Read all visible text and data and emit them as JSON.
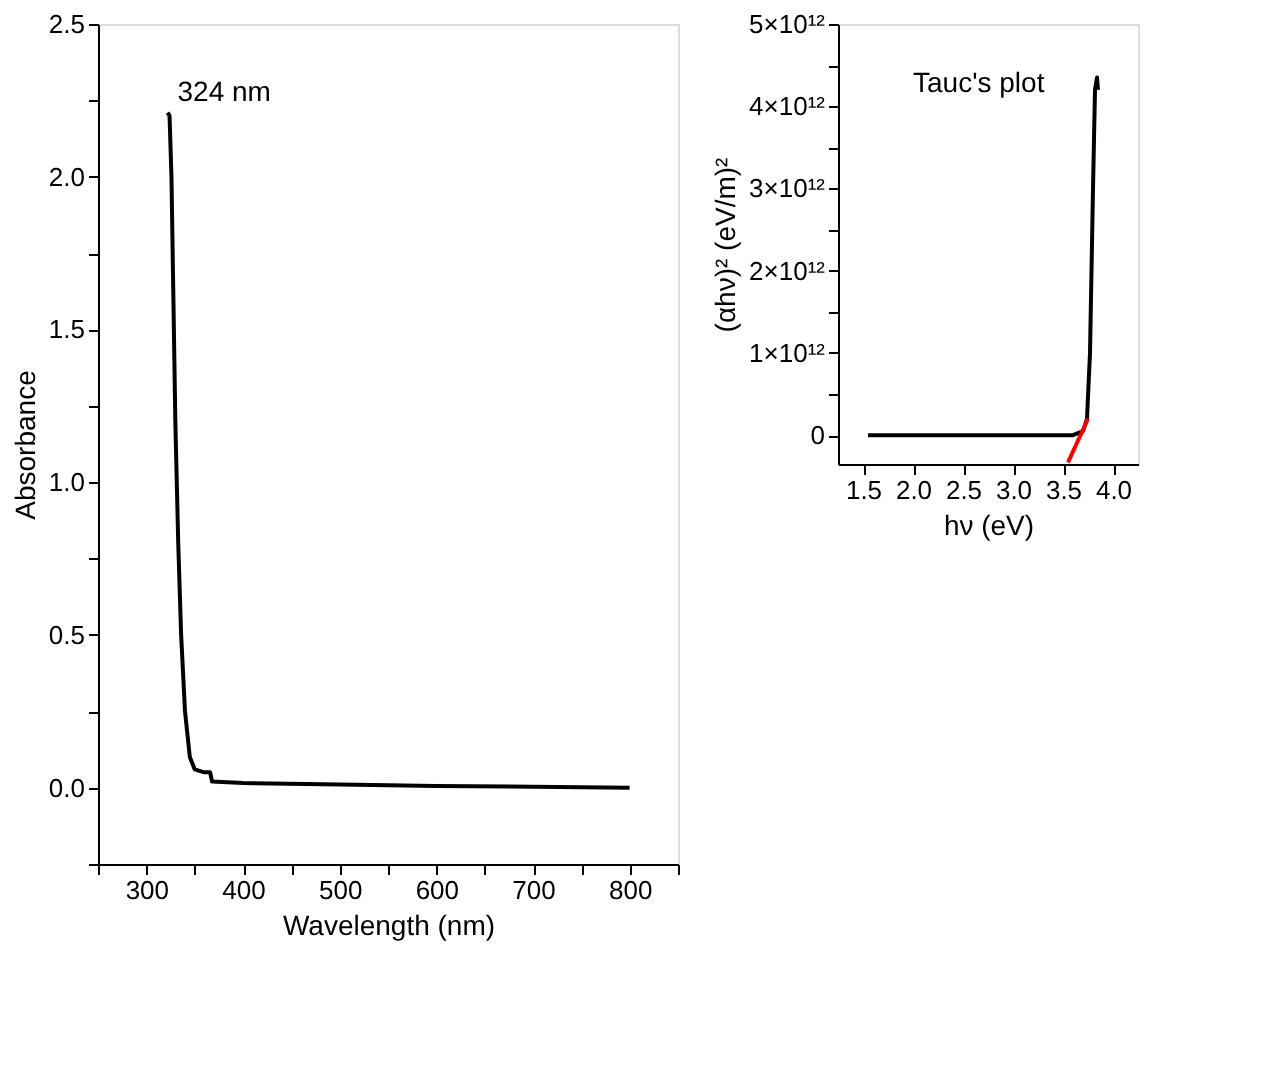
{
  "chart_data": [
    {
      "type": "line",
      "xlabel": "Wavelength (nm)",
      "ylabel": "Absorbance",
      "legend": false,
      "grid": false,
      "x": [
        322,
        324,
        326,
        328,
        330,
        333,
        336,
        340,
        345,
        350,
        360,
        366,
        368,
        400,
        500,
        600,
        700,
        800
      ],
      "series": [
        {
          "color": "#000000",
          "values": [
            2.21,
            2.2,
            2.0,
            1.6,
            1.2,
            0.8,
            0.5,
            0.25,
            0.1,
            0.06,
            0.05,
            0.05,
            0.02,
            0.015,
            0.01,
            0.005,
            0.003,
            0.0
          ]
        }
      ],
      "xlim": [
        250,
        850
      ],
      "xticks": [
        {
          "value": 250,
          "label": null
        },
        300,
        {
          "value": 350,
          "label": null
        },
        400,
        {
          "value": 450,
          "label": null
        },
        500,
        {
          "value": 550,
          "label": null
        },
        600,
        {
          "value": 650,
          "label": null
        },
        700,
        {
          "value": 750,
          "label": null
        },
        800,
        {
          "value": 850,
          "label": null
        }
      ],
      "ylim": [
        -0.25,
        2.5
      ],
      "yticks": [
        {
          "value": -0.25,
          "label": null
        },
        {
          "value": 0,
          "label": "0.0"
        },
        {
          "value": 0.25,
          "label": null
        },
        0.5,
        {
          "value": 0.75,
          "label": null
        },
        {
          "value": 1,
          "label": "1.0"
        },
        {
          "value": 1.25,
          "label": null
        },
        1.5,
        {
          "value": 1.75,
          "label": null
        },
        {
          "value": 2,
          "label": "2.0"
        },
        {
          "value": 2.25,
          "label": null
        },
        2.5
      ],
      "annotations": [
        {
          "text": "324 nm",
          "x": 324,
          "y": 2.21
        }
      ]
    },
    {
      "type": "line",
      "xlabel": "hν (eV)",
      "ylabel": "(αhν)² (eV/m)²",
      "legend": false,
      "grid": false,
      "series": [
        {
          "color": "#000000",
          "x": [
            1.55,
            3.6,
            3.7,
            3.74,
            3.77,
            3.8,
            3.82,
            3.84,
            3.85
          ],
          "values": [
            0,
            0,
            50000000000.0,
            200000000000.0,
            1000000000000.0,
            3000000000000.0,
            4200000000000.0,
            4350000000000.0,
            4200000000000.0
          ]
        },
        {
          "color": "#ff0000",
          "x": [
            3.55,
            3.75
          ],
          "values": [
            -330000000000.0,
            200000000000.0
          ]
        }
      ],
      "xlim": [
        1.25,
        4.25
      ],
      "xticks": [
        1.5,
        {
          "value": 2,
          "label": "2.0"
        },
        2.5,
        {
          "value": 3,
          "label": "3.0"
        },
        3.5,
        {
          "value": 4,
          "label": "4.0"
        }
      ],
      "ylim": [
        -350000000000.0,
        5000000000000.0
      ],
      "yticks": [
        0,
        {
          "value": 500000000000.0,
          "label": null
        },
        {
          "value": 1000000000000.0,
          "label": "1×10¹²"
        },
        {
          "value": 1500000000000.0,
          "label": null
        },
        {
          "value": 2000000000000.0,
          "label": "2×10¹²"
        },
        {
          "value": 2500000000000.0,
          "label": null
        },
        {
          "value": 3000000000000.0,
          "label": "3×10¹²"
        },
        {
          "value": 3500000000000.0,
          "label": null
        },
        {
          "value": 4000000000000.0,
          "label": "4×10¹²"
        },
        {
          "value": 4500000000000.0,
          "label": null
        },
        {
          "value": 5000000000000.0,
          "label": "5×10¹²"
        }
      ],
      "annotations": [
        "Tauc's plot"
      ]
    }
  ]
}
